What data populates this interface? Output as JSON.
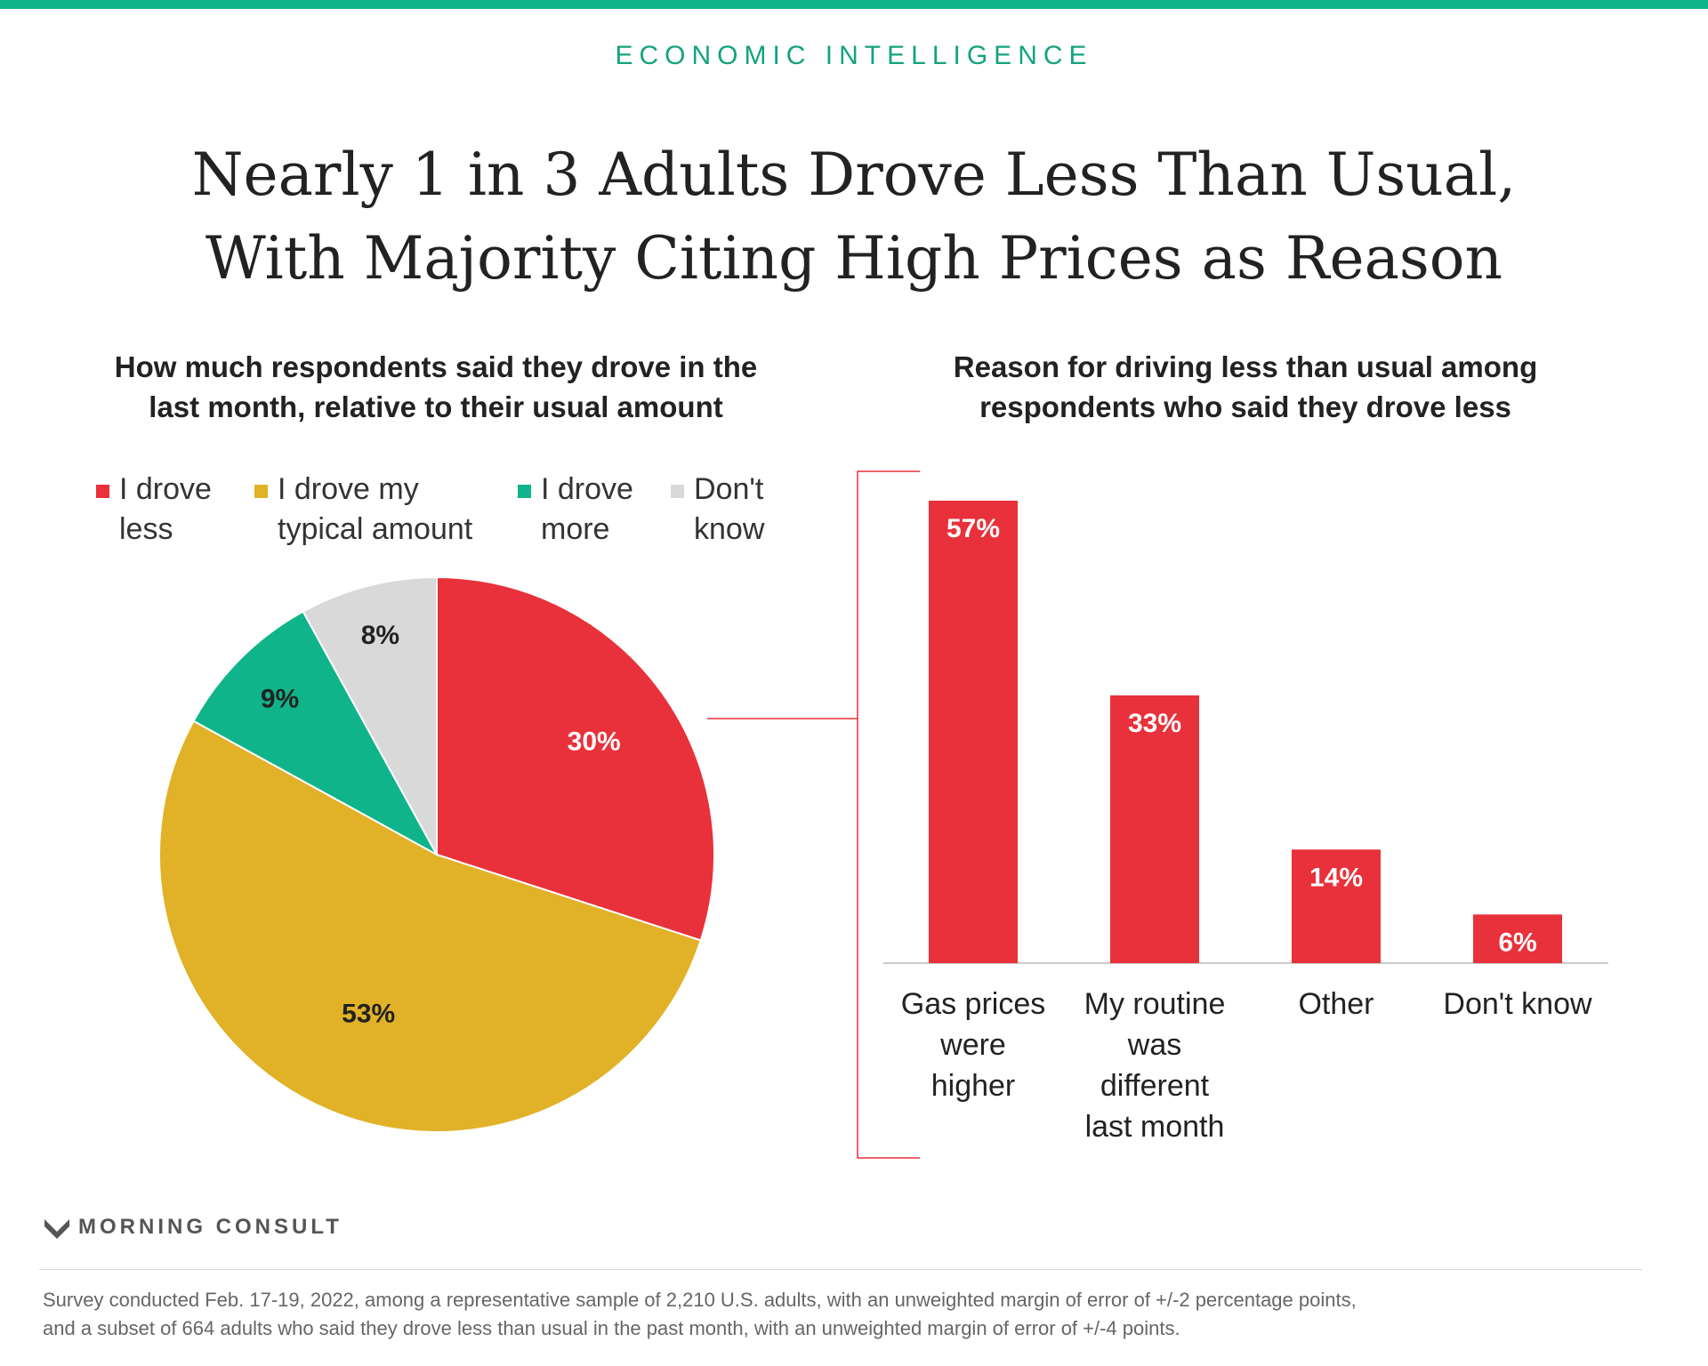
{
  "header": {
    "kicker": "ECONOMIC INTELLIGENCE",
    "title_lines": [
      "Nearly 1 in 3 Adults Drove Less Than Usual,",
      "With Majority Citing High Prices as Reason"
    ],
    "accent_color": "#10b48a"
  },
  "chart_data": [
    {
      "type": "pie",
      "title_lines": [
        "How much respondents said they drove in the",
        "last month, relative to their usual amount"
      ],
      "slices": [
        {
          "name": "I drove less",
          "legend_lines": [
            "I drove",
            "less"
          ],
          "value": 30,
          "label": "30%",
          "color": "#e8313a"
        },
        {
          "name": "I drove my typical amount",
          "legend_lines": [
            "I drove my",
            "typical amount"
          ],
          "value": 53,
          "label": "53%",
          "color": "#e1b128"
        },
        {
          "name": "I drove more",
          "legend_lines": [
            "I drove",
            "more"
          ],
          "value": 9,
          "label": "9%",
          "color": "#10b48a"
        },
        {
          "name": "Don't know",
          "legend_lines": [
            "Don't",
            "know"
          ],
          "value": 8,
          "label": "8%",
          "color": "#d9d9d9"
        }
      ],
      "legend_placement": "top",
      "start_angle": "12 o'clock",
      "direction": "clockwise"
    },
    {
      "type": "bar",
      "title_lines": [
        "Reason for driving less than usual among",
        "respondents who said they drove less"
      ],
      "categories": [
        [
          "Gas prices",
          "were",
          "higher"
        ],
        [
          "My routine",
          "was",
          "different",
          "last month"
        ],
        [
          "Other"
        ],
        [
          "Don't know"
        ]
      ],
      "values": [
        57,
        33,
        14,
        6
      ],
      "labels": [
        "57%",
        "33%",
        "14%",
        "6%"
      ],
      "color": "#e8313a",
      "ylim": [
        0,
        57
      ],
      "grid": false,
      "y_axis_visible": false
    }
  ],
  "footer": {
    "brand": "MORNING CONSULT",
    "note_lines": [
      "Survey conducted Feb. 17-19, 2022, among a representative sample of 2,210 U.S. adults, with an unweighted margin of error of +/-2 percentage points,",
      "and a subset of 664 adults who said they drove less than usual in the past month, with an unweighted margin of error of +/-4 points."
    ]
  }
}
